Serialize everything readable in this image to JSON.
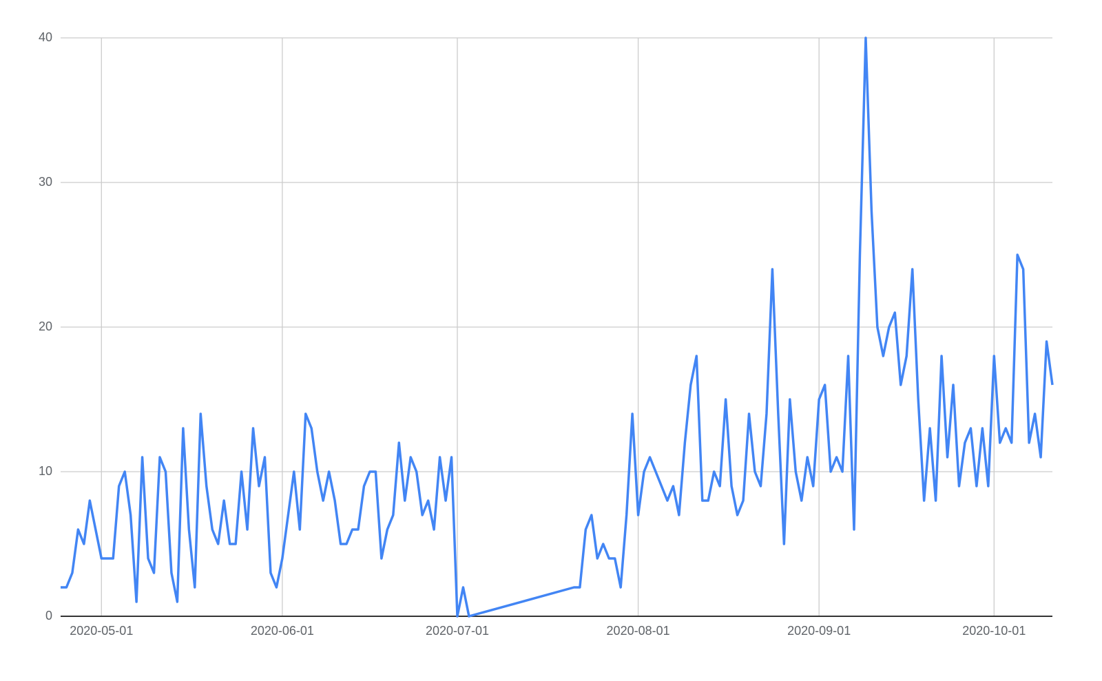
{
  "chart_data": {
    "type": "line",
    "color": "#4285f4",
    "grid": true,
    "x": [
      "2020-04-24",
      "2020-04-25",
      "2020-04-26",
      "2020-04-27",
      "2020-04-28",
      "2020-04-29",
      "2020-04-30",
      "2020-05-01",
      "2020-05-02",
      "2020-05-03",
      "2020-05-04",
      "2020-05-05",
      "2020-05-06",
      "2020-05-07",
      "2020-05-08",
      "2020-05-09",
      "2020-05-10",
      "2020-05-11",
      "2020-05-12",
      "2020-05-13",
      "2020-05-14",
      "2020-05-15",
      "2020-05-16",
      "2020-05-17",
      "2020-05-18",
      "2020-05-19",
      "2020-05-20",
      "2020-05-21",
      "2020-05-22",
      "2020-05-23",
      "2020-05-24",
      "2020-05-25",
      "2020-05-26",
      "2020-05-27",
      "2020-05-28",
      "2020-05-29",
      "2020-05-30",
      "2020-05-31",
      "2020-06-01",
      "2020-06-02",
      "2020-06-03",
      "2020-06-04",
      "2020-06-05",
      "2020-06-06",
      "2020-06-07",
      "2020-06-08",
      "2020-06-09",
      "2020-06-10",
      "2020-06-11",
      "2020-06-12",
      "2020-06-13",
      "2020-06-14",
      "2020-06-15",
      "2020-06-16",
      "2020-06-17",
      "2020-06-18",
      "2020-06-19",
      "2020-06-20",
      "2020-06-21",
      "2020-06-22",
      "2020-06-23",
      "2020-06-24",
      "2020-06-25",
      "2020-06-26",
      "2020-06-27",
      "2020-06-28",
      "2020-06-29",
      "2020-06-30",
      "2020-07-01",
      "2020-07-02",
      "2020-07-03",
      "2020-07-21",
      "2020-07-22",
      "2020-07-23",
      "2020-07-24",
      "2020-07-25",
      "2020-07-26",
      "2020-07-27",
      "2020-07-28",
      "2020-07-29",
      "2020-07-30",
      "2020-07-31",
      "2020-08-01",
      "2020-08-02",
      "2020-08-03",
      "2020-08-04",
      "2020-08-05",
      "2020-08-06",
      "2020-08-07",
      "2020-08-08",
      "2020-08-09",
      "2020-08-10",
      "2020-08-11",
      "2020-08-12",
      "2020-08-13",
      "2020-08-14",
      "2020-08-15",
      "2020-08-16",
      "2020-08-17",
      "2020-08-18",
      "2020-08-19",
      "2020-08-20",
      "2020-08-21",
      "2020-08-22",
      "2020-08-23",
      "2020-08-24",
      "2020-08-25",
      "2020-08-26",
      "2020-08-27",
      "2020-08-28",
      "2020-08-29",
      "2020-08-30",
      "2020-08-31",
      "2020-09-01",
      "2020-09-02",
      "2020-09-03",
      "2020-09-04",
      "2020-09-05",
      "2020-09-06",
      "2020-09-07",
      "2020-09-08",
      "2020-09-09",
      "2020-09-10",
      "2020-09-11",
      "2020-09-12",
      "2020-09-13",
      "2020-09-14",
      "2020-09-15",
      "2020-09-16",
      "2020-09-17",
      "2020-09-18",
      "2020-09-19",
      "2020-09-20",
      "2020-09-21",
      "2020-09-22",
      "2020-09-23",
      "2020-09-24",
      "2020-09-25",
      "2020-09-26",
      "2020-09-27",
      "2020-09-28",
      "2020-09-29",
      "2020-09-30",
      "2020-10-01",
      "2020-10-02",
      "2020-10-03",
      "2020-10-04",
      "2020-10-05",
      "2020-10-06",
      "2020-10-07",
      "2020-10-08",
      "2020-10-09",
      "2020-10-10",
      "2020-10-11"
    ],
    "values": [
      2,
      2,
      3,
      6,
      5,
      8,
      6,
      4,
      4,
      4,
      9,
      10,
      7,
      1,
      11,
      4,
      3,
      11,
      10,
      3,
      1,
      13,
      6,
      2,
      14,
      9,
      6,
      5,
      8,
      5,
      5,
      10,
      6,
      13,
      9,
      11,
      3,
      2,
      4,
      7,
      10,
      6,
      14,
      13,
      10,
      8,
      10,
      8,
      5,
      5,
      6,
      6,
      9,
      10,
      10,
      4,
      6,
      7,
      12,
      8,
      11,
      10,
      7,
      8,
      6,
      11,
      8,
      11,
      0,
      2,
      0,
      2,
      2,
      6,
      7,
      4,
      5,
      4,
      4,
      2,
      7,
      14,
      7,
      10,
      11,
      10,
      9,
      8,
      9,
      7,
      12,
      16,
      18,
      8,
      8,
      10,
      9,
      15,
      9,
      7,
      8,
      14,
      10,
      9,
      14,
      24,
      14,
      5,
      15,
      10,
      8,
      11,
      9,
      15,
      16,
      10,
      11,
      10,
      18,
      6,
      25,
      40,
      28,
      20,
      18,
      20,
      21,
      16,
      18,
      24,
      15,
      8,
      13,
      8,
      18,
      11,
      16,
      9,
      12,
      13,
      9,
      13,
      9,
      18,
      12,
      13,
      12,
      25,
      24,
      12,
      14,
      11,
      19,
      16
    ],
    "xlim": [
      "2020-04-24",
      "2020-10-11"
    ],
    "xticks": [
      "2020-05-01",
      "2020-06-01",
      "2020-07-01",
      "2020-08-01",
      "2020-09-01",
      "2020-10-01"
    ],
    "ylim": [
      0,
      40
    ],
    "yticks": [
      0,
      10,
      20,
      30,
      40
    ]
  }
}
